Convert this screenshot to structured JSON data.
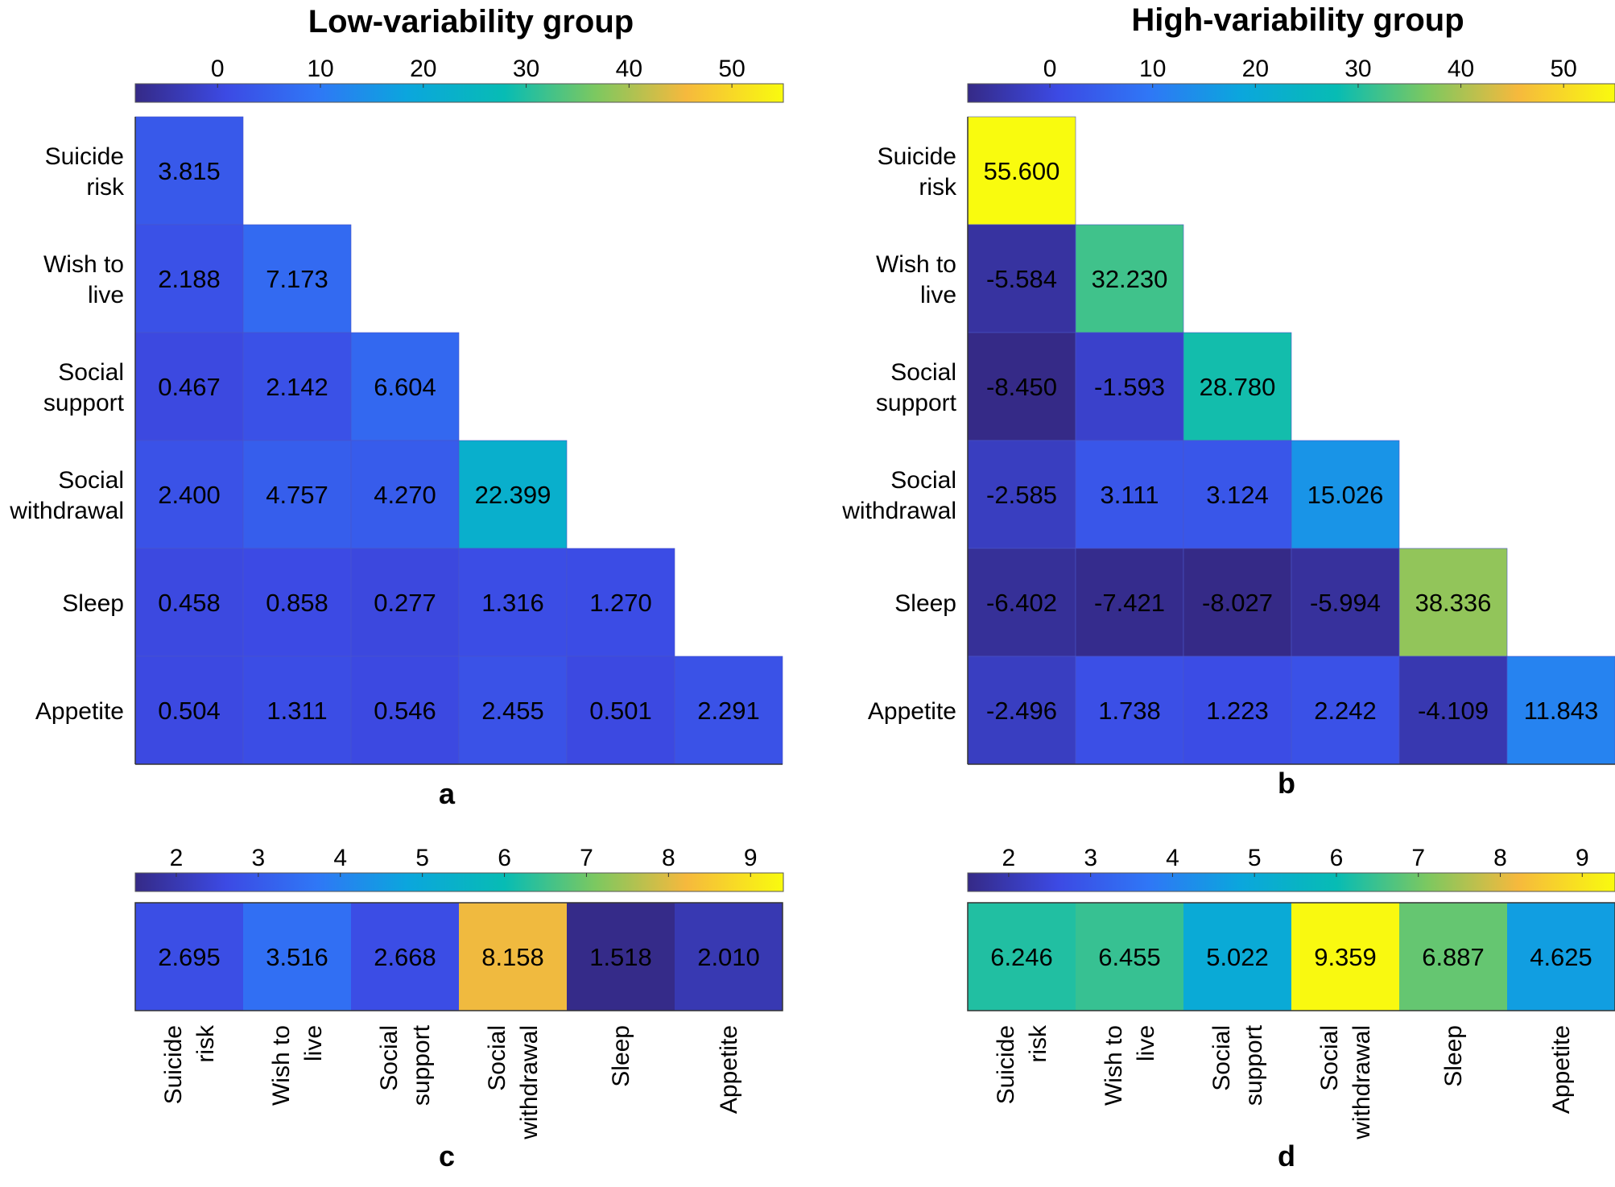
{
  "chart_data": [
    {
      "type": "heatmap",
      "panel_label": "a",
      "title": "Low-variability group",
      "colorbar": {
        "min": -8,
        "max": 55,
        "ticks": [
          0,
          10,
          20,
          30,
          40,
          50
        ]
      },
      "rows": [
        "Suicide\nrisk",
        "Wish to\nlive",
        "Social\nsupport",
        "Social\nwithdrawal",
        "Sleep",
        "Appetite"
      ],
      "cols": [
        "Suicide risk",
        "Wish to live",
        "Social support",
        "Social withdrawal",
        "Sleep",
        "Appetite"
      ],
      "values": [
        [
          3.815
        ],
        [
          2.188,
          7.173
        ],
        [
          0.467,
          2.142,
          6.604
        ],
        [
          2.4,
          4.757,
          4.27,
          22.399
        ],
        [
          0.458,
          0.858,
          0.277,
          1.316,
          1.27
        ],
        [
          0.504,
          1.311,
          0.546,
          2.455,
          0.501,
          2.291
        ]
      ]
    },
    {
      "type": "heatmap",
      "panel_label": "b",
      "title": "High-variability group",
      "colorbar": {
        "min": -8,
        "max": 55,
        "ticks": [
          0,
          10,
          20,
          30,
          40,
          50
        ]
      },
      "rows": [
        "Suicide\nrisk",
        "Wish to\nlive",
        "Social\nsupport",
        "Social\nwithdrawal",
        "Sleep",
        "Appetite"
      ],
      "cols": [
        "Suicide risk",
        "Wish to live",
        "Social support",
        "Social withdrawal",
        "Sleep",
        "Appetite"
      ],
      "values": [
        [
          55.6
        ],
        [
          -5.584,
          32.23
        ],
        [
          -8.45,
          -1.593,
          28.78
        ],
        [
          -2.585,
          3.111,
          3.124,
          15.026
        ],
        [
          -6.402,
          -7.421,
          -8.027,
          -5.994,
          38.336
        ],
        [
          -2.496,
          1.738,
          1.223,
          2.242,
          -4.109,
          11.843
        ]
      ]
    },
    {
      "type": "heatmap",
      "panel_label": "c",
      "colorbar": {
        "min": 1.5,
        "max": 9.4,
        "ticks": [
          2,
          3,
          4,
          5,
          6,
          7,
          8,
          9
        ]
      },
      "cols": [
        "Suicide\nrisk",
        "Wish to\nlive",
        "Social\nsupport",
        "Social\nwithdrawal",
        "Sleep",
        "Appetite"
      ],
      "values": [
        2.695,
        3.516,
        2.668,
        8.158,
        1.518,
        2.01
      ]
    },
    {
      "type": "heatmap",
      "panel_label": "d",
      "colorbar": {
        "min": 1.5,
        "max": 9.4,
        "ticks": [
          2,
          3,
          4,
          5,
          6,
          7,
          8,
          9
        ]
      },
      "cols": [
        "Suicide\nrisk",
        "Wish to\nlive",
        "Social\nsupport",
        "Social\nwithdrawal",
        "Sleep",
        "Appetite"
      ],
      "values": [
        6.246,
        6.455,
        5.022,
        9.359,
        6.887,
        4.625
      ]
    }
  ]
}
